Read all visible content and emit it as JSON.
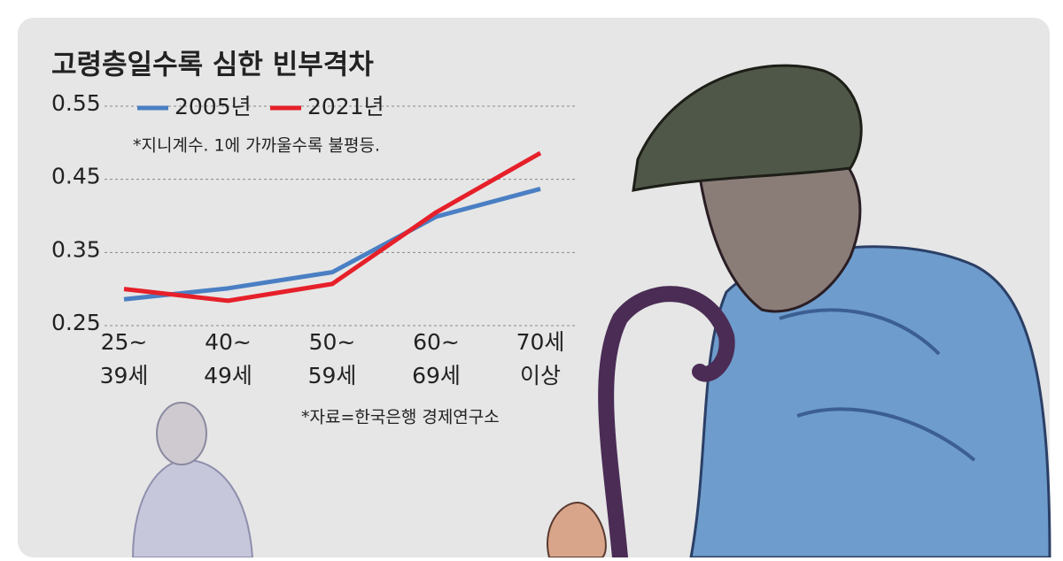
{
  "chart_data": {
    "type": "line",
    "title": "고령층일수록 심한 빈부격차",
    "note": "*지니계수. 1에 가까울수록 불평등.",
    "source": "*자료=한국은행 경제연구소",
    "categories": [
      [
        "25~",
        "39세"
      ],
      [
        "40~",
        "49세"
      ],
      [
        "50~",
        "59세"
      ],
      [
        "60~",
        "69세"
      ],
      [
        "70세",
        "이상"
      ]
    ],
    "series": [
      {
        "name": "2005년",
        "color": "#4a7fc4",
        "values": [
          0.286,
          0.301,
          0.323,
          0.399,
          0.437
        ]
      },
      {
        "name": "2021년",
        "color": "#e6202a",
        "values": [
          0.3,
          0.284,
          0.307,
          0.405,
          0.486
        ]
      }
    ],
    "ylim": [
      0.25,
      0.55
    ],
    "yticks": [
      0.25,
      0.35,
      0.45,
      0.55
    ],
    "grid": true
  }
}
